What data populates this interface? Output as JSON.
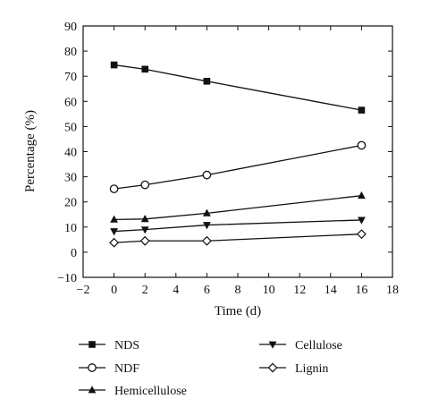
{
  "chart_data": {
    "type": "line",
    "xlabel": "Time (d)",
    "ylabel": "Percentage (%)",
    "xlim": [
      -2,
      18
    ],
    "ylim": [
      -10,
      90
    ],
    "xticks": [
      -2,
      0,
      2,
      4,
      6,
      8,
      10,
      12,
      14,
      16,
      18
    ],
    "yticks": [
      -10,
      0,
      10,
      20,
      30,
      40,
      50,
      60,
      70,
      80,
      90
    ],
    "xtick_labels": [
      "−2",
      "0",
      "2",
      "4",
      "6",
      "8",
      "10",
      "12",
      "14",
      "16",
      "18"
    ],
    "ytick_labels": [
      "−10",
      "0",
      "10",
      "20",
      "30",
      "40",
      "50",
      "60",
      "70",
      "80",
      "90"
    ],
    "grid": false,
    "legend_position": "below",
    "x": [
      0,
      2,
      6,
      16
    ],
    "series": [
      {
        "name": "NDS",
        "marker": "square-filled",
        "values": [
          74.5,
          72.8,
          68.0,
          56.5
        ]
      },
      {
        "name": "NDF",
        "marker": "circle-open",
        "values": [
          25.2,
          26.8,
          30.7,
          42.5
        ]
      },
      {
        "name": "Hemicellulose",
        "marker": "triangle-up-filled",
        "values": [
          13.0,
          13.2,
          15.5,
          22.5
        ]
      },
      {
        "name": "Cellulose",
        "marker": "triangle-down-filled",
        "values": [
          8.3,
          9.0,
          10.8,
          12.8
        ]
      },
      {
        "name": "Lignin",
        "marker": "diamond-open",
        "values": [
          3.8,
          4.5,
          4.5,
          7.2
        ]
      }
    ]
  }
}
